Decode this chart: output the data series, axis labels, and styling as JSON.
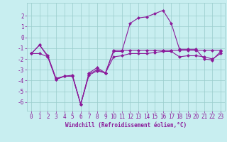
{
  "xlabel": "Windchill (Refroidissement éolien,°C)",
  "x": [
    0,
    1,
    2,
    3,
    4,
    5,
    6,
    7,
    8,
    9,
    10,
    11,
    12,
    13,
    14,
    15,
    16,
    17,
    18,
    19,
    20,
    21,
    22,
    23
  ],
  "line1": [
    -1.5,
    -0.7,
    -1.7,
    -3.8,
    -3.6,
    -3.5,
    -6.2,
    -3.3,
    -2.8,
    -3.3,
    -1.2,
    -1.2,
    -1.2,
    -1.2,
    -1.2,
    -1.2,
    -1.2,
    -1.2,
    -1.2,
    -1.2,
    -1.2,
    -1.2,
    -1.2,
    -1.2
  ],
  "line2": [
    -1.5,
    -0.7,
    -1.8,
    -3.9,
    -3.6,
    -3.6,
    -6.2,
    -3.4,
    -3.0,
    -3.3,
    -1.3,
    -1.3,
    1.3,
    1.8,
    1.9,
    2.2,
    2.5,
    1.3,
    -1.1,
    -1.1,
    -1.1,
    -2.0,
    -2.1,
    -1.3
  ],
  "line3": [
    -1.5,
    -1.5,
    -1.8,
    -3.9,
    -3.6,
    -3.6,
    -6.2,
    -3.5,
    -3.1,
    -3.3,
    -1.8,
    -1.7,
    -1.5,
    -1.5,
    -1.5,
    -1.4,
    -1.3,
    -1.3,
    -1.8,
    -1.7,
    -1.7,
    -1.8,
    -2.0,
    -1.5
  ],
  "line_color": "#8b1a9a",
  "bg_color": "#c8eef0",
  "grid_color": "#99cccc",
  "ylim": [
    -6.8,
    3.2
  ],
  "yticks": [
    -6,
    -5,
    -4,
    -3,
    -2,
    -1,
    0,
    1,
    2
  ],
  "xticks": [
    0,
    1,
    2,
    3,
    4,
    5,
    6,
    7,
    8,
    9,
    10,
    11,
    12,
    13,
    14,
    15,
    16,
    17,
    18,
    19,
    20,
    21,
    22,
    23
  ]
}
